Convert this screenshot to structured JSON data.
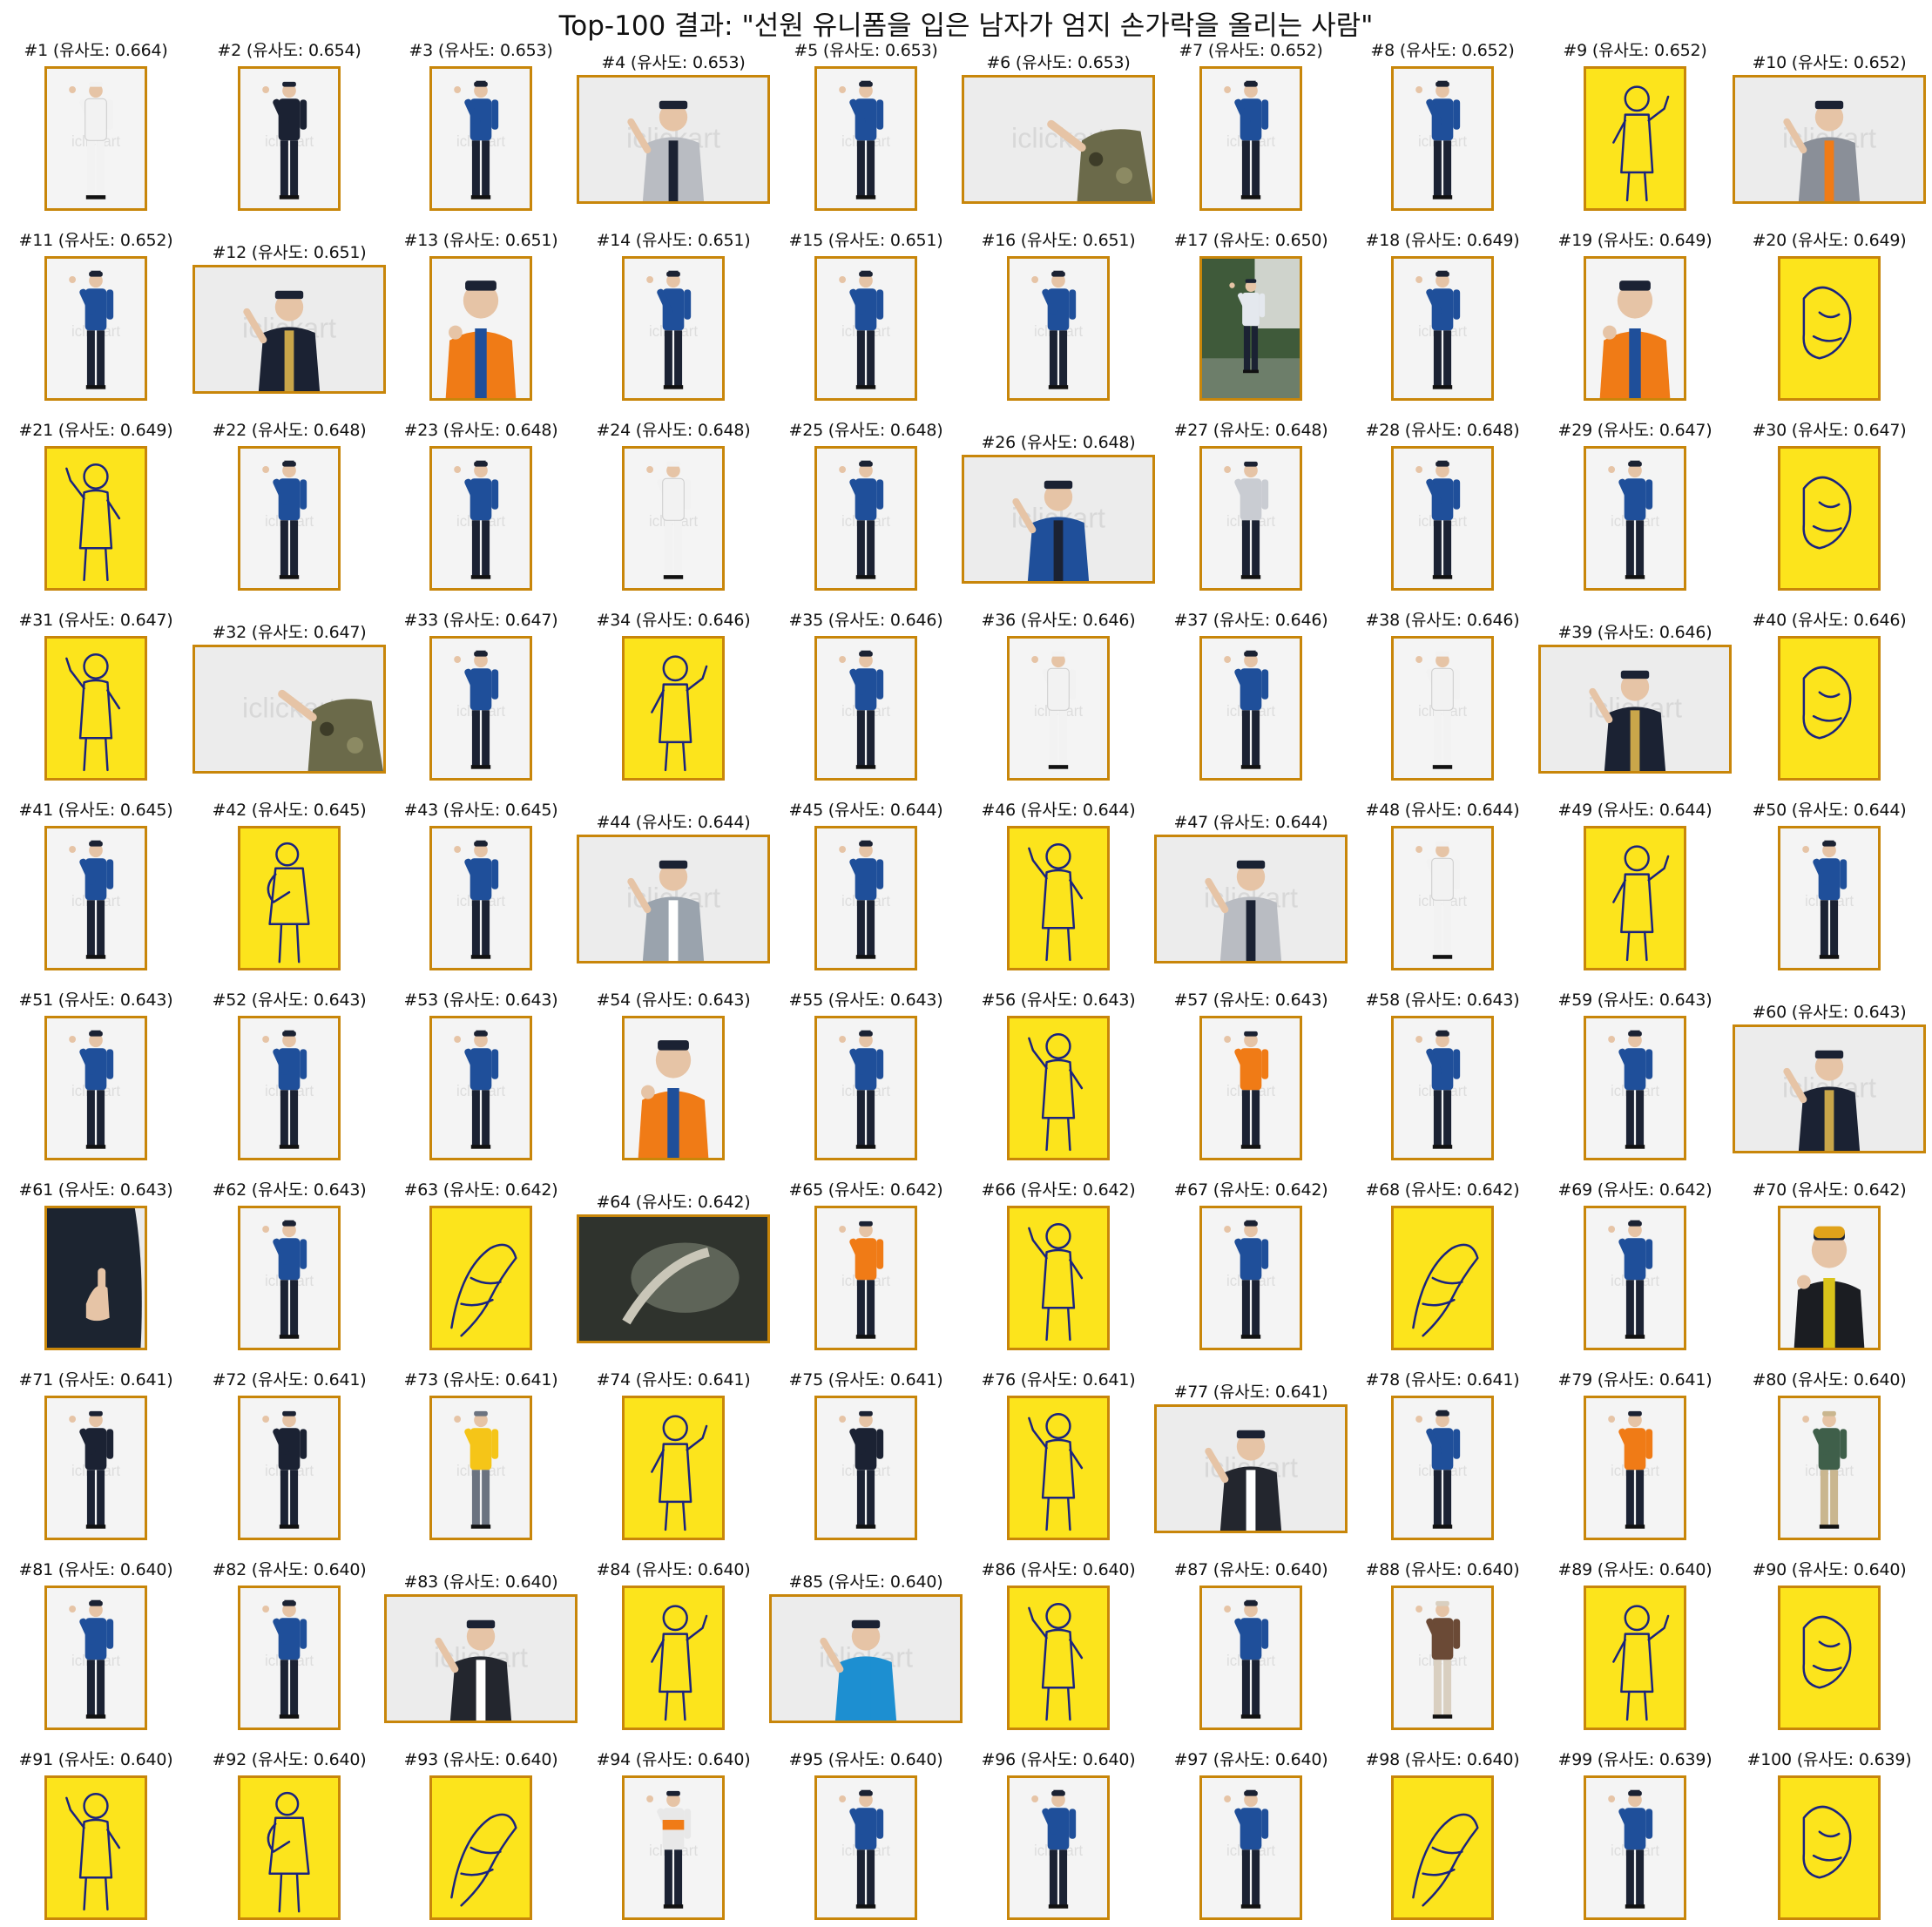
{
  "title": "Top-100 결과: \"선원 유니폼을 입은 남자가 엄지 손가락을 올리는 사람\"",
  "colors": {
    "frame": "#c8860a",
    "yellow_bg": "#fce41c",
    "line_art": "#1a237e",
    "studio_bg": "#f4f4f4",
    "police_blue": "#1f4f9a",
    "navy": "#1b2233",
    "orange": "#f07b16"
  },
  "results": [
    {
      "label": "#1 (유사도: 0.664)",
      "kind": "white-uniform"
    },
    {
      "label": "#2 (유사도: 0.654)",
      "kind": "navy-uniform"
    },
    {
      "label": "#3 (유사도: 0.653)",
      "kind": "police"
    },
    {
      "label": "#4 (유사도: 0.653)",
      "kind": "shirt-landscape"
    },
    {
      "label": "#5 (유사도: 0.653)",
      "kind": "police"
    },
    {
      "label": "#6 (유사도: 0.653)",
      "kind": "camo-landscape"
    },
    {
      "label": "#7 (유사도: 0.652)",
      "kind": "police"
    },
    {
      "label": "#8 (유사도: 0.652)",
      "kind": "police"
    },
    {
      "label": "#9 (유사도: 0.652)",
      "kind": "line-art"
    },
    {
      "label": "#10 (유사도: 0.652)",
      "kind": "vest-landscape"
    },
    {
      "label": "#11 (유사도: 0.652)",
      "kind": "police"
    },
    {
      "label": "#12 (유사도: 0.651)",
      "kind": "navy-landscape"
    },
    {
      "label": "#13 (유사도: 0.651)",
      "kind": "orange-portrait"
    },
    {
      "label": "#14 (유사도: 0.651)",
      "kind": "police"
    },
    {
      "label": "#15 (유사도: 0.651)",
      "kind": "police"
    },
    {
      "label": "#16 (유사도: 0.651)",
      "kind": "police"
    },
    {
      "label": "#17 (유사도: 0.650)",
      "kind": "outdoor"
    },
    {
      "label": "#18 (유사도: 0.649)",
      "kind": "police"
    },
    {
      "label": "#19 (유사도: 0.649)",
      "kind": "orange-portrait"
    },
    {
      "label": "#20 (유사도: 0.649)",
      "kind": "line-art"
    },
    {
      "label": "#21 (유사도: 0.649)",
      "kind": "line-art"
    },
    {
      "label": "#22 (유사도: 0.648)",
      "kind": "police"
    },
    {
      "label": "#23 (유사도: 0.648)",
      "kind": "police"
    },
    {
      "label": "#24 (유사도: 0.648)",
      "kind": "white-uniform"
    },
    {
      "label": "#25 (유사도: 0.648)",
      "kind": "police"
    },
    {
      "label": "#26 (유사도: 0.648)",
      "kind": "police-landscape"
    },
    {
      "label": "#27 (유사도: 0.648)",
      "kind": "shirt"
    },
    {
      "label": "#28 (유사도: 0.648)",
      "kind": "police"
    },
    {
      "label": "#29 (유사도: 0.647)",
      "kind": "police"
    },
    {
      "label": "#30 (유사도: 0.647)",
      "kind": "line-art"
    },
    {
      "label": "#31 (유사도: 0.647)",
      "kind": "line-art"
    },
    {
      "label": "#32 (유사도: 0.647)",
      "kind": "camo-landscape"
    },
    {
      "label": "#33 (유사도: 0.647)",
      "kind": "police"
    },
    {
      "label": "#34 (유사도: 0.646)",
      "kind": "line-art"
    },
    {
      "label": "#35 (유사도: 0.646)",
      "kind": "police"
    },
    {
      "label": "#36 (유사도: 0.646)",
      "kind": "white-uniform"
    },
    {
      "label": "#37 (유사도: 0.646)",
      "kind": "police"
    },
    {
      "label": "#38 (유사도: 0.646)",
      "kind": "white-uniform"
    },
    {
      "label": "#39 (유사도: 0.646)",
      "kind": "navy-landscape"
    },
    {
      "label": "#40 (유사도: 0.646)",
      "kind": "line-art"
    },
    {
      "label": "#41 (유사도: 0.645)",
      "kind": "police"
    },
    {
      "label": "#42 (유사도: 0.645)",
      "kind": "line-art"
    },
    {
      "label": "#43 (유사도: 0.645)",
      "kind": "police"
    },
    {
      "label": "#44 (유사도: 0.644)",
      "kind": "grey-landscape"
    },
    {
      "label": "#45 (유사도: 0.644)",
      "kind": "police"
    },
    {
      "label": "#46 (유사도: 0.644)",
      "kind": "line-art"
    },
    {
      "label": "#47 (유사도: 0.644)",
      "kind": "shirt-landscape"
    },
    {
      "label": "#48 (유사도: 0.644)",
      "kind": "white-uniform"
    },
    {
      "label": "#49 (유사도: 0.644)",
      "kind": "line-art"
    },
    {
      "label": "#50 (유사도: 0.644)",
      "kind": "police"
    },
    {
      "label": "#51 (유사도: 0.643)",
      "kind": "police"
    },
    {
      "label": "#52 (유사도: 0.643)",
      "kind": "police"
    },
    {
      "label": "#53 (유사도: 0.643)",
      "kind": "police"
    },
    {
      "label": "#54 (유사도: 0.643)",
      "kind": "orange-portrait"
    },
    {
      "label": "#55 (유사도: 0.643)",
      "kind": "police"
    },
    {
      "label": "#56 (유사도: 0.643)",
      "kind": "line-art"
    },
    {
      "label": "#57 (유사도: 0.643)",
      "kind": "orange-shirt"
    },
    {
      "label": "#58 (유사도: 0.643)",
      "kind": "police"
    },
    {
      "label": "#59 (유사도: 0.643)",
      "kind": "police"
    },
    {
      "label": "#60 (유사도: 0.643)",
      "kind": "navy-landscape"
    },
    {
      "label": "#61 (유사도: 0.643)",
      "kind": "sweater-closeup"
    },
    {
      "label": "#62 (유사도: 0.643)",
      "kind": "police"
    },
    {
      "label": "#63 (유사도: 0.642)",
      "kind": "line-art"
    },
    {
      "label": "#64 (유사도: 0.642)",
      "kind": "dark-landscape"
    },
    {
      "label": "#65 (유사도: 0.642)",
      "kind": "orange-shirt"
    },
    {
      "label": "#66 (유사도: 0.642)",
      "kind": "line-art"
    },
    {
      "label": "#67 (유사도: 0.642)",
      "kind": "police"
    },
    {
      "label": "#68 (유사도: 0.642)",
      "kind": "line-art"
    },
    {
      "label": "#69 (유사도: 0.642)",
      "kind": "police"
    },
    {
      "label": "#70 (유사도: 0.642)",
      "kind": "firefighter"
    },
    {
      "label": "#71 (유사도: 0.641)",
      "kind": "navy-uniform"
    },
    {
      "label": "#72 (유사도: 0.641)",
      "kind": "navy-uniform"
    },
    {
      "label": "#73 (유사도: 0.641)",
      "kind": "yellow-vest"
    },
    {
      "label": "#74 (유사도: 0.641)",
      "kind": "line-art"
    },
    {
      "label": "#75 (유사도: 0.641)",
      "kind": "navy-uniform"
    },
    {
      "label": "#76 (유사도: 0.641)",
      "kind": "line-art"
    },
    {
      "label": "#77 (유사도: 0.641)",
      "kind": "suit-landscape"
    },
    {
      "label": "#78 (유사도: 0.641)",
      "kind": "police"
    },
    {
      "label": "#79 (유사도: 0.641)",
      "kind": "orange-shirt"
    },
    {
      "label": "#80 (유사도: 0.640)",
      "kind": "green-jacket"
    },
    {
      "label": "#81 (유사도: 0.640)",
      "kind": "police"
    },
    {
      "label": "#82 (유사도: 0.640)",
      "kind": "police"
    },
    {
      "label": "#83 (유사도: 0.640)",
      "kind": "suit-landscape"
    },
    {
      "label": "#84 (유사도: 0.640)",
      "kind": "line-art"
    },
    {
      "label": "#85 (유사도: 0.640)",
      "kind": "tshirt-landscape"
    },
    {
      "label": "#86 (유사도: 0.640)",
      "kind": "line-art"
    },
    {
      "label": "#87 (유사도: 0.640)",
      "kind": "police"
    },
    {
      "label": "#88 (유사도: 0.640)",
      "kind": "apron"
    },
    {
      "label": "#89 (유사도: 0.640)",
      "kind": "line-art"
    },
    {
      "label": "#90 (유사도: 0.640)",
      "kind": "line-art"
    },
    {
      "label": "#91 (유사도: 0.640)",
      "kind": "line-art"
    },
    {
      "label": "#92 (유사도: 0.640)",
      "kind": "line-art"
    },
    {
      "label": "#93 (유사도: 0.640)",
      "kind": "line-art"
    },
    {
      "label": "#94 (유사도: 0.640)",
      "kind": "back-view"
    },
    {
      "label": "#95 (유사도: 0.640)",
      "kind": "police"
    },
    {
      "label": "#96 (유사도: 0.640)",
      "kind": "police"
    },
    {
      "label": "#97 (유사도: 0.640)",
      "kind": "police"
    },
    {
      "label": "#98 (유사도: 0.640)",
      "kind": "line-art"
    },
    {
      "label": "#99 (유사도: 0.639)",
      "kind": "police"
    },
    {
      "label": "#100 (유사도: 0.639)",
      "kind": "line-art"
    }
  ]
}
